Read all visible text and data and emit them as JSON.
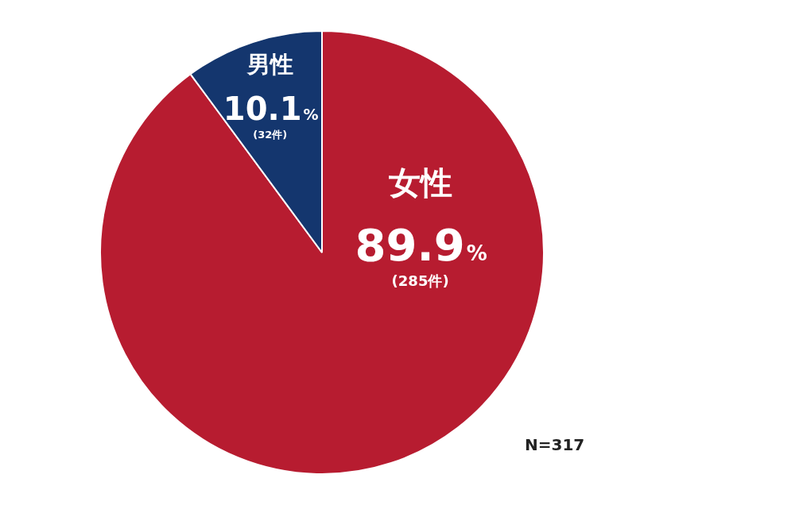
{
  "chart_data": {
    "type": "pie",
    "categories": [
      "女性",
      "男性"
    ],
    "values": [
      89.9,
      10.1
    ],
    "colors": [
      "#b71c30",
      "#14366e"
    ],
    "value_labels": [
      "89.9%",
      "10.1%"
    ],
    "annotations": [
      {
        "text": "(285件)",
        "x": "女性"
      },
      {
        "text": "(32件)",
        "x": "男性"
      },
      "N=317"
    ],
    "legend": false
  }
}
